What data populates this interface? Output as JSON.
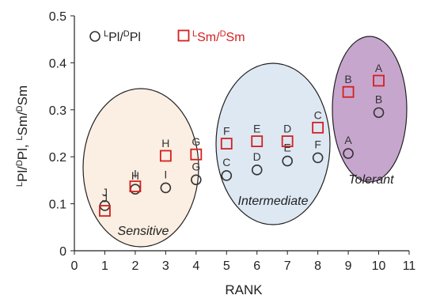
{
  "chart_data": {
    "type": "scatter",
    "xlabel": "RANK",
    "ylabel_parts": [
      {
        "text": "L",
        "sup": true
      },
      {
        "text": "Pl/",
        "sup": false
      },
      {
        "text": "D",
        "sup": true
      },
      {
        "text": "Pl, ",
        "sup": false
      },
      {
        "text": "L",
        "sup": true
      },
      {
        "text": "Sm/",
        "sup": false
      },
      {
        "text": "D",
        "sup": true
      },
      {
        "text": "Sm",
        "sup": false
      }
    ],
    "xlim": [
      0,
      11
    ],
    "ylim": [
      0,
      0.5
    ],
    "x_ticks": [
      0,
      1,
      2,
      3,
      4,
      5,
      6,
      7,
      8,
      9,
      10,
      11
    ],
    "y_ticks": [
      0,
      0.1,
      0.2,
      0.3,
      0.4,
      0.5
    ],
    "y_tick_labels": [
      "0",
      "0.1",
      "0.2",
      "0.3",
      "0.4",
      "0.5"
    ],
    "grid": false,
    "legend_position": "top-left",
    "series": [
      {
        "legend_parts": [
          {
            "text": "L",
            "sup": true
          },
          {
            "text": "Pl/",
            "sup": false
          },
          {
            "text": "D",
            "sup": true
          },
          {
            "text": "Pl",
            "sup": false
          }
        ],
        "marker": "circle",
        "color": "#333333",
        "label_position": "below",
        "points": [
          {
            "x": 1,
            "y": 0.096,
            "label": "J"
          },
          {
            "x": 2,
            "y": 0.131,
            "label": "H"
          },
          {
            "x": 3,
            "y": 0.134,
            "label": "I"
          },
          {
            "x": 4,
            "y": 0.151,
            "label": "G"
          },
          {
            "x": 5,
            "y": 0.16,
            "label": "C"
          },
          {
            "x": 6,
            "y": 0.172,
            "label": "D"
          },
          {
            "x": 7,
            "y": 0.191,
            "label": "E"
          },
          {
            "x": 8,
            "y": 0.198,
            "label": "F"
          },
          {
            "x": 9,
            "y": 0.207,
            "label": "A"
          },
          {
            "x": 10,
            "y": 0.294,
            "label": "B"
          }
        ]
      },
      {
        "legend_parts": [
          {
            "text": "L",
            "sup": true
          },
          {
            "text": "Sm/",
            "sup": false
          },
          {
            "text": "D",
            "sup": true
          },
          {
            "text": "Sm",
            "sup": false
          }
        ],
        "marker": "square",
        "color": "#d32020",
        "label_position": "above",
        "points": [
          {
            "x": 1,
            "y": 0.085,
            "label": "J"
          },
          {
            "x": 2,
            "y": 0.137,
            "label": "I"
          },
          {
            "x": 3,
            "y": 0.202,
            "label": "H"
          },
          {
            "x": 4,
            "y": 0.205,
            "label": "G"
          },
          {
            "x": 5,
            "y": 0.228,
            "label": "F"
          },
          {
            "x": 6,
            "y": 0.233,
            "label": "E"
          },
          {
            "x": 7,
            "y": 0.233,
            "label": "D"
          },
          {
            "x": 8,
            "y": 0.262,
            "label": "C"
          },
          {
            "x": 9,
            "y": 0.338,
            "label": "B"
          },
          {
            "x": 10,
            "y": 0.362,
            "label": "A"
          }
        ]
      }
    ],
    "regions": [
      {
        "name": "Sensitive",
        "fill": "#fbeee2"
      },
      {
        "name": "Intermediate",
        "fill": "#dde8f3"
      },
      {
        "name": "Tolerant",
        "fill": "#c7a6ce"
      }
    ]
  }
}
